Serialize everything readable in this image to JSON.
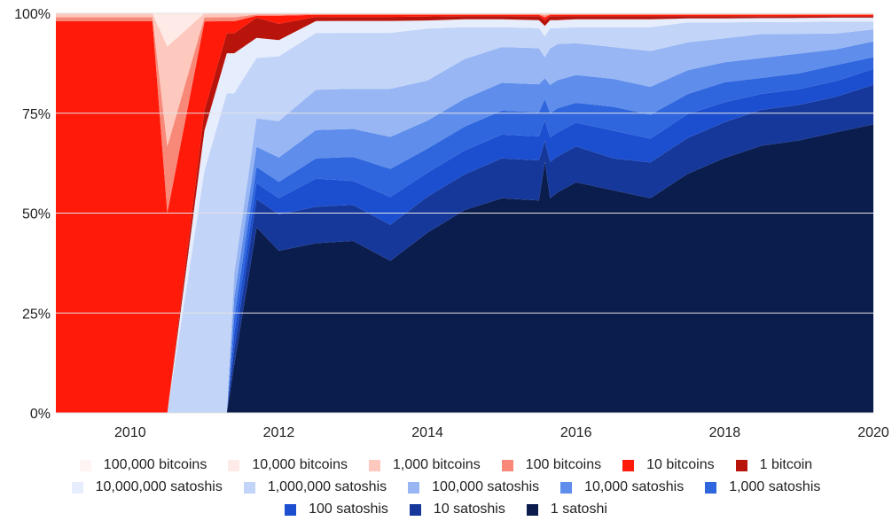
{
  "chart_data": {
    "type": "area",
    "stacked": true,
    "normalized": true,
    "x_ticks": [
      "2010",
      "2012",
      "2014",
      "2016",
      "2018",
      "2020"
    ],
    "y_ticks": [
      "0%",
      "25%",
      "50%",
      "75%",
      "100%"
    ],
    "xlim": [
      2009.0,
      2020.0
    ],
    "ylim": [
      0,
      100
    ],
    "legend_position": "bottom",
    "x": [
      2009.0,
      2010.3,
      2010.5,
      2011.0,
      2011.3,
      2011.4,
      2011.7,
      2012.0,
      2012.5,
      2013.0,
      2013.5,
      2014.0,
      2014.5,
      2015.0,
      2015.5,
      2015.58,
      2015.65,
      2015.75,
      2016.0,
      2016.5,
      2017.0,
      2017.5,
      2018.0,
      2018.5,
      2019.0,
      2019.5,
      2020.0
    ],
    "series": [
      {
        "name": "1 satoshi",
        "color": "#0b1d4d",
        "values": [
          0,
          0,
          0,
          0,
          0,
          12,
          46,
          40,
          42,
          43,
          38,
          45,
          51,
          54,
          53,
          24,
          53,
          55,
          58,
          56,
          54,
          60,
          64,
          67,
          69,
          71,
          73
        ]
      },
      {
        "name": "10 satoshis",
        "color": "#16389a",
        "values": [
          0,
          0,
          0,
          0,
          0,
          4,
          7,
          9,
          9,
          9,
          9,
          9,
          9,
          10,
          10,
          2,
          9,
          9,
          9,
          8,
          9,
          9,
          9,
          9,
          9,
          9,
          10
        ]
      },
      {
        "name": "100 satoshis",
        "color": "#1c4fd0",
        "values": [
          0,
          0,
          0,
          0,
          0,
          4,
          4,
          4,
          7,
          6,
          7,
          6,
          6,
          6,
          6,
          2,
          6,
          6,
          6,
          7,
          6,
          6,
          5,
          4,
          4,
          4,
          4
        ]
      },
      {
        "name": "1,000 satoshis",
        "color": "#2f66de",
        "values": [
          0,
          0,
          0,
          0,
          0,
          4,
          4,
          4,
          5,
          6,
          7,
          6,
          6,
          6,
          6,
          2,
          6,
          6,
          5,
          6,
          6,
          5,
          5,
          4,
          4,
          4,
          3
        ]
      },
      {
        "name": "10,000 satoshis",
        "color": "#5e8deb",
        "values": [
          0,
          0,
          0,
          0,
          0,
          5,
          5,
          6,
          7,
          7,
          8,
          7,
          7,
          7,
          7,
          2,
          7,
          7,
          7,
          7,
          7,
          6,
          5,
          5,
          5,
          4,
          4
        ]
      },
      {
        "name": "100,000 satoshis",
        "color": "#98b6f3",
        "values": [
          0,
          0,
          0,
          0,
          0,
          6,
          7,
          9,
          10,
          10,
          12,
          10,
          10,
          9,
          9,
          2,
          9,
          9,
          8,
          8,
          9,
          7,
          6,
          6,
          5,
          4,
          3
        ]
      },
      {
        "name": "1,000,000 satoshis",
        "color": "#c2d4f8",
        "values": [
          0,
          0,
          0,
          60,
          80,
          45,
          15,
          16,
          14,
          14,
          14,
          13,
          8,
          5,
          5,
          2,
          5,
          4,
          4,
          5,
          6,
          5,
          4,
          3,
          3,
          3,
          2
        ]
      },
      {
        "name": "10,000,000 satoshis",
        "color": "#e6edfc",
        "values": [
          0,
          0,
          0,
          10,
          10,
          10,
          5,
          4,
          3,
          3,
          3,
          2,
          2,
          2,
          2,
          1,
          2,
          2,
          2,
          2,
          2,
          1,
          1,
          1,
          1,
          1,
          1
        ]
      },
      {
        "name": "1 bitcoin",
        "color": "#b8140b",
        "values": [
          0,
          0,
          0,
          5,
          5,
          5,
          5,
          4,
          1,
          1,
          1,
          1,
          0.8,
          0.8,
          1,
          0.5,
          1,
          1,
          0.8,
          0.8,
          0.8,
          0.6,
          0.6,
          0.5,
          0.5,
          0.4,
          0.4
        ]
      },
      {
        "name": "10 bitcoins",
        "color": "#ff1a0a",
        "values": [
          98,
          98,
          6,
          22,
          3,
          3,
          0.5,
          2,
          0.5,
          0.5,
          0.5,
          0.4,
          0.3,
          0.3,
          0.3,
          0.3,
          0.3,
          0.3,
          0.3,
          0.3,
          0.3,
          0.3,
          0.3,
          0.3,
          0.3,
          0.3,
          0.3
        ]
      },
      {
        "name": "100 bitcoins",
        "color": "#f88878",
        "values": [
          1,
          1,
          2,
          1,
          1,
          1,
          0.3,
          0.3,
          0.2,
          0.2,
          0.2,
          0.2,
          0.2,
          0.2,
          0.2,
          0.2,
          0.2,
          0.2,
          0.2,
          0.2,
          0.2,
          0.2,
          0.2,
          0.2,
          0.2,
          0.2,
          0.2
        ]
      },
      {
        "name": "1,000 bitcoins",
        "color": "#fdc8bd",
        "values": [
          1,
          1,
          3,
          1,
          1,
          1,
          0.3,
          0.3,
          0.2,
          0.2,
          0.2,
          0.2,
          0.2,
          0.2,
          0.2,
          0.2,
          0.2,
          0.2,
          0.2,
          0.2,
          0.2,
          0.2,
          0.2,
          0.2,
          0.2,
          0.2,
          0.2
        ]
      },
      {
        "name": "10,000 bitcoins",
        "color": "#feeae6",
        "values": [
          0,
          0,
          1,
          0,
          0,
          0,
          0,
          0,
          0,
          0,
          0,
          0,
          0,
          0,
          0,
          0,
          0,
          0,
          0,
          0,
          0,
          0,
          0,
          0,
          0,
          0,
          0
        ]
      },
      {
        "name": "100,000 bitcoins",
        "color": "#fff4f4",
        "values": [
          0,
          0,
          0,
          0,
          0,
          0,
          0,
          0,
          0,
          0,
          0,
          0,
          0,
          0,
          0,
          0,
          0,
          0,
          0,
          0,
          0,
          0,
          0,
          0,
          0,
          0,
          0
        ]
      }
    ],
    "legend_rows": [
      [
        {
          "label": "100,000 bitcoins",
          "color": "#fff4f4"
        },
        {
          "label": "10,000 bitcoins",
          "color": "#feeae6"
        },
        {
          "label": "1,000 bitcoins",
          "color": "#fdc8bd"
        },
        {
          "label": "100 bitcoins",
          "color": "#f88878"
        },
        {
          "label": "10 bitcoins",
          "color": "#ff1a0a"
        },
        {
          "label": "1 bitcoin",
          "color": "#b8140b"
        }
      ],
      [
        {
          "label": "10,000,000 satoshis",
          "color": "#e6edfc"
        },
        {
          "label": "1,000,000 satoshis",
          "color": "#c2d4f8"
        },
        {
          "label": "100,000 satoshis",
          "color": "#98b6f3"
        },
        {
          "label": "10,000 satoshis",
          "color": "#5e8deb"
        },
        {
          "label": "1,000 satoshis",
          "color": "#2f66de"
        }
      ],
      [
        {
          "label": "100 satoshis",
          "color": "#1c4fd0"
        },
        {
          "label": "10 satoshis",
          "color": "#16389a"
        },
        {
          "label": "1 satoshi",
          "color": "#0b1d4d"
        }
      ]
    ]
  }
}
